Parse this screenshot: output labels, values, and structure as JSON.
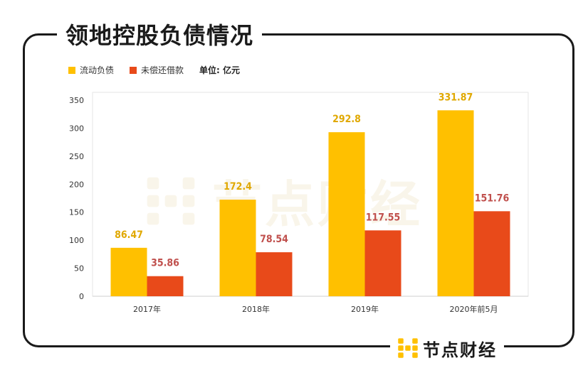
{
  "title": "领地控股负债情况",
  "legend": {
    "unit_label": "单位:  亿元"
  },
  "brand": {
    "name": "节点财经",
    "icon": "node-logo-icon"
  },
  "colors": {
    "current_liabilities": "#FFC000",
    "unpaid_borrowings": "#E84A1A",
    "label_current": "#E0A800",
    "label_unpaid": "#C0504D"
  },
  "chart_data": {
    "type": "bar",
    "categories": [
      "2017年",
      "2018年",
      "2019年",
      "2020年前5月"
    ],
    "series": [
      {
        "name": "流动负债",
        "values": [
          86.47,
          172.4,
          292.8,
          331.87
        ],
        "labels": [
          "86.47",
          "172.4",
          "292.8",
          "331.87"
        ]
      },
      {
        "name": "未偿还借款",
        "values": [
          35.86,
          78.54,
          117.55,
          151.76
        ],
        "labels": [
          "35.86",
          "78.54",
          "117.55",
          "151.76"
        ]
      }
    ],
    "ylim": [
      0,
      350
    ],
    "yticks": [
      0,
      50,
      100,
      150,
      200,
      250,
      300,
      350
    ],
    "grid": false,
    "legend_position": "top-left"
  }
}
